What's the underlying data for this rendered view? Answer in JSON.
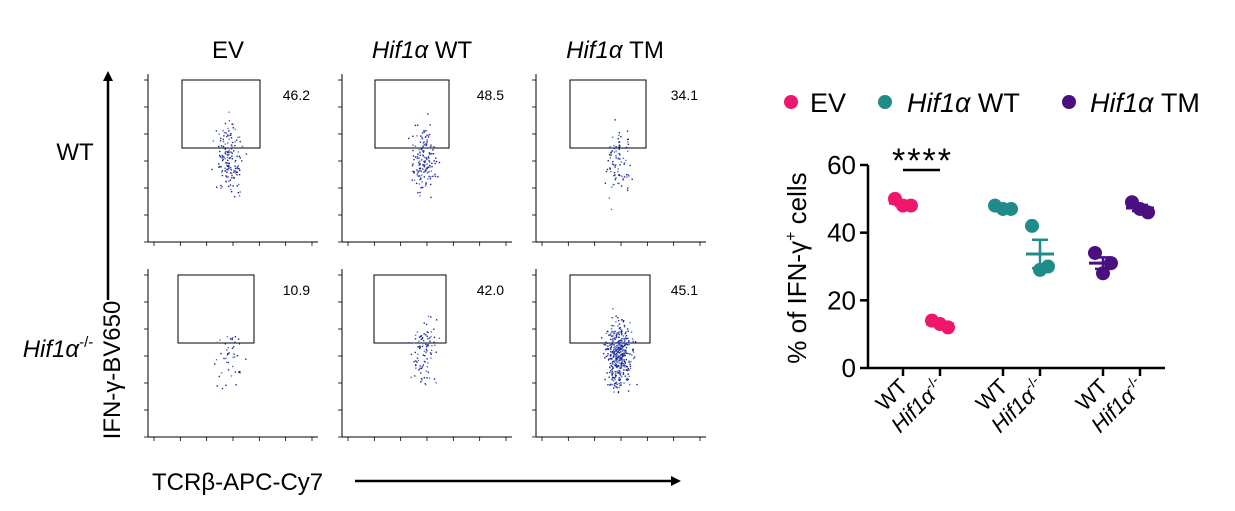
{
  "facs": {
    "col_headers": [
      {
        "italic": "",
        "rest": "EV"
      },
      {
        "italic": "Hif1α",
        "rest": " WT"
      },
      {
        "italic": "Hif1α",
        "rest": " TM"
      }
    ],
    "row_labels": [
      {
        "italic": "",
        "rest": "WT",
        "sup": ""
      },
      {
        "italic": "Hif1α",
        "rest": "",
        "sup": "-/-"
      }
    ],
    "y_axis_label": "IFN-γ-BV650",
    "x_axis_label": "TCRβ-APC-Cy7",
    "gate_percentages": [
      [
        "46.2",
        "48.5",
        "34.1"
      ],
      [
        "10.9",
        "42.0",
        "45.1"
      ]
    ],
    "colors": {
      "dots": "#1a2a8f",
      "dots_light": "#5b6bd0",
      "axis": "#000000"
    }
  },
  "chart_data": {
    "type": "scatter",
    "legend": {
      "placement": "top",
      "entries": [
        {
          "italic": "",
          "rest": "EV",
          "color": "#f0166e"
        },
        {
          "italic": "Hif1α",
          "rest": " WT",
          "color": "#1f8c8a"
        },
        {
          "italic": "Hif1α",
          "rest": " TM",
          "color": "#4a1080"
        }
      ]
    },
    "ylabel": "% of IFN-γ+ cells",
    "ylabel_parts": {
      "before": "% of IFN-γ",
      "sup": "+",
      "after": " cells"
    },
    "ylim": [
      0,
      60
    ],
    "yticks": [
      0,
      20,
      40,
      60
    ],
    "x_tick_labels": [
      {
        "italic": "",
        "rest": "WT",
        "sup": ""
      },
      {
        "italic": "Hif1α",
        "rest": "",
        "sup": "-/-"
      },
      {
        "italic": "",
        "rest": "WT",
        "sup": ""
      },
      {
        "italic": "Hif1α",
        "rest": "",
        "sup": "-/-"
      },
      {
        "italic": "",
        "rest": "WT",
        "sup": ""
      },
      {
        "italic": "Hif1α",
        "rest": "",
        "sup": "-/-"
      }
    ],
    "groups": [
      {
        "series": "EV",
        "genotype": "WT",
        "color": "#f0166e",
        "values": [
          50,
          48,
          48
        ],
        "mean": 48.7,
        "sem": 0.7
      },
      {
        "series": "EV",
        "genotype": "Hif1α-/-",
        "color": "#f0166e",
        "values": [
          14,
          12,
          13
        ],
        "mean": 13,
        "sem": 0.6
      },
      {
        "series": "Hif1α WT",
        "genotype": "WT",
        "color": "#1f8c8a",
        "values": [
          48,
          47,
          47
        ],
        "mean": 47.3,
        "sem": 0.3
      },
      {
        "series": "Hif1α WT",
        "genotype": "Hif1α-/-",
        "color": "#1f8c8a",
        "values": [
          42,
          30,
          29
        ],
        "mean": 33.7,
        "sem": 4.2
      },
      {
        "series": "Hif1α TM",
        "genotype": "WT",
        "color": "#4a1080",
        "values": [
          34,
          31,
          28
        ],
        "mean": 31,
        "sem": 1.7
      },
      {
        "series": "Hif1α TM",
        "genotype": "Hif1α-/-",
        "color": "#4a1080",
        "values": [
          49,
          46,
          47
        ],
        "mean": 47.3,
        "sem": 0.9
      }
    ],
    "significance": {
      "label": "****",
      "between_groups": [
        0,
        1
      ]
    }
  }
}
